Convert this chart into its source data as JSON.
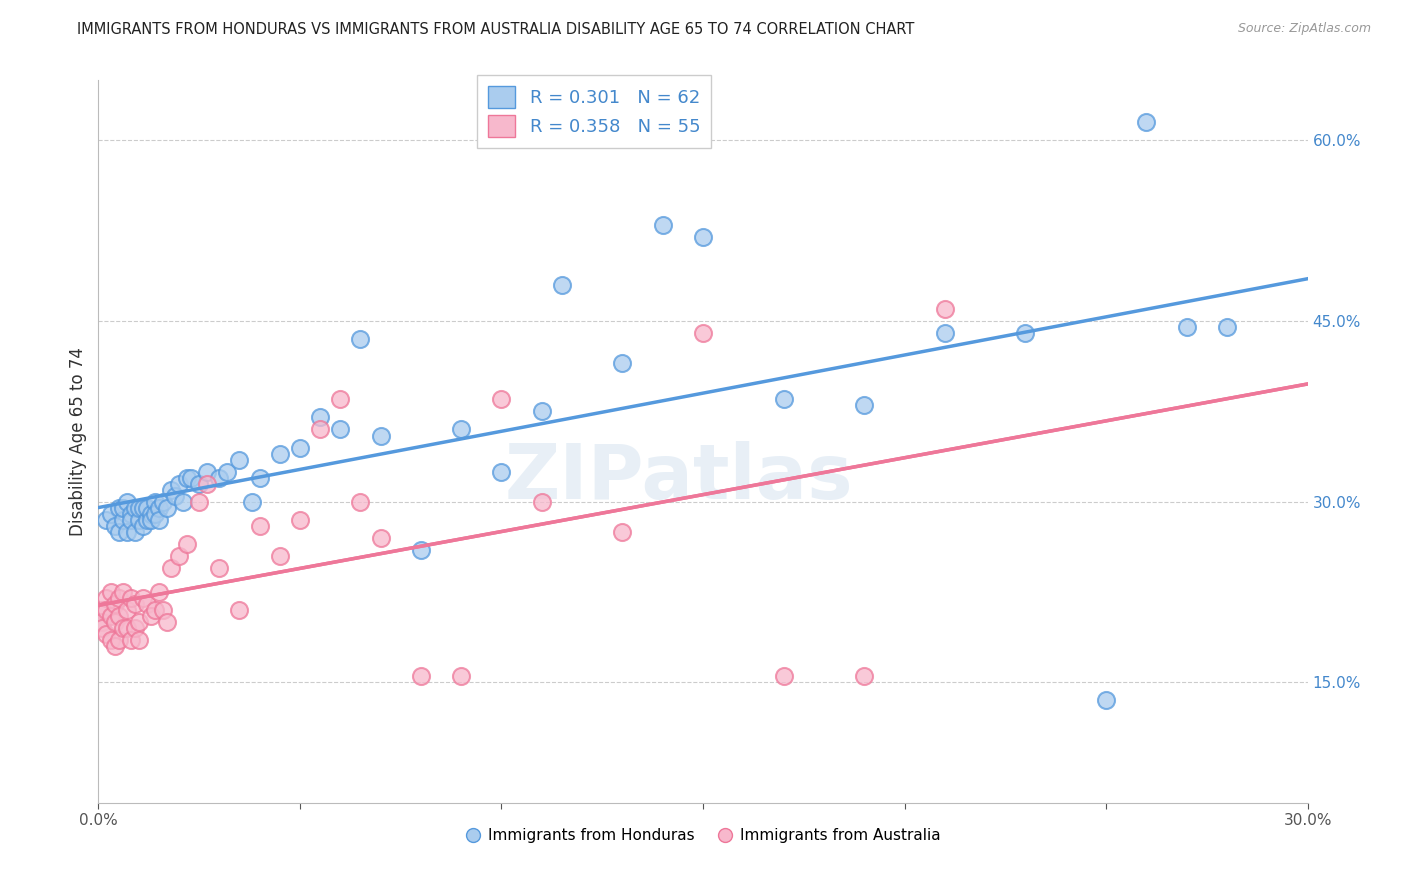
{
  "title": "IMMIGRANTS FROM HONDURAS VS IMMIGRANTS FROM AUSTRALIA DISABILITY AGE 65 TO 74 CORRELATION CHART",
  "source_text": "Source: ZipAtlas.com",
  "ylabel": "Disability Age 65 to 74",
  "xlim": [
    0.0,
    0.3
  ],
  "ylim": [
    0.05,
    0.65
  ],
  "yticks_right": [
    0.15,
    0.3,
    0.45,
    0.6
  ],
  "ytick_right_labels": [
    "15.0%",
    "30.0%",
    "45.0%",
    "60.0%"
  ],
  "R_honduras": 0.301,
  "N_honduras": 62,
  "R_australia": 0.358,
  "N_australia": 55,
  "color_honduras": "#aaccee",
  "color_australia": "#f7b8cc",
  "color_honduras_line": "#5599dd",
  "color_australia_line": "#ee7799",
  "color_r_value": "#4488cc",
  "watermark": "ZIPatlas",
  "honduras_x": [
    0.002,
    0.003,
    0.004,
    0.005,
    0.005,
    0.006,
    0.006,
    0.007,
    0.007,
    0.008,
    0.008,
    0.009,
    0.009,
    0.01,
    0.01,
    0.011,
    0.011,
    0.012,
    0.012,
    0.013,
    0.013,
    0.014,
    0.014,
    0.015,
    0.015,
    0.016,
    0.017,
    0.018,
    0.019,
    0.02,
    0.021,
    0.022,
    0.023,
    0.025,
    0.027,
    0.03,
    0.032,
    0.035,
    0.038,
    0.04,
    0.045,
    0.05,
    0.055,
    0.06,
    0.065,
    0.07,
    0.08,
    0.09,
    0.1,
    0.11,
    0.13,
    0.15,
    0.17,
    0.19,
    0.21,
    0.23,
    0.115,
    0.14,
    0.25,
    0.26,
    0.27,
    0.28
  ],
  "honduras_y": [
    0.285,
    0.29,
    0.28,
    0.295,
    0.275,
    0.285,
    0.295,
    0.3,
    0.275,
    0.29,
    0.285,
    0.295,
    0.275,
    0.285,
    0.295,
    0.28,
    0.295,
    0.285,
    0.295,
    0.29,
    0.285,
    0.3,
    0.29,
    0.295,
    0.285,
    0.3,
    0.295,
    0.31,
    0.305,
    0.315,
    0.3,
    0.32,
    0.32,
    0.315,
    0.325,
    0.32,
    0.325,
    0.335,
    0.3,
    0.32,
    0.34,
    0.345,
    0.37,
    0.36,
    0.435,
    0.355,
    0.26,
    0.36,
    0.325,
    0.375,
    0.415,
    0.52,
    0.385,
    0.38,
    0.44,
    0.44,
    0.48,
    0.53,
    0.135,
    0.615,
    0.445,
    0.445
  ],
  "australia_x": [
    0.001,
    0.001,
    0.001,
    0.002,
    0.002,
    0.002,
    0.003,
    0.003,
    0.003,
    0.004,
    0.004,
    0.004,
    0.005,
    0.005,
    0.005,
    0.006,
    0.006,
    0.007,
    0.007,
    0.008,
    0.008,
    0.009,
    0.009,
    0.01,
    0.01,
    0.011,
    0.012,
    0.013,
    0.014,
    0.015,
    0.016,
    0.017,
    0.018,
    0.02,
    0.022,
    0.025,
    0.027,
    0.03,
    0.035,
    0.04,
    0.045,
    0.05,
    0.055,
    0.06,
    0.065,
    0.07,
    0.08,
    0.09,
    0.1,
    0.11,
    0.13,
    0.15,
    0.17,
    0.19,
    0.21
  ],
  "australia_y": [
    0.21,
    0.2,
    0.195,
    0.22,
    0.21,
    0.19,
    0.225,
    0.205,
    0.185,
    0.215,
    0.2,
    0.18,
    0.22,
    0.205,
    0.185,
    0.225,
    0.195,
    0.21,
    0.195,
    0.22,
    0.185,
    0.215,
    0.195,
    0.2,
    0.185,
    0.22,
    0.215,
    0.205,
    0.21,
    0.225,
    0.21,
    0.2,
    0.245,
    0.255,
    0.265,
    0.3,
    0.315,
    0.245,
    0.21,
    0.28,
    0.255,
    0.285,
    0.36,
    0.385,
    0.3,
    0.27,
    0.155,
    0.155,
    0.385,
    0.3,
    0.275,
    0.44,
    0.155,
    0.155,
    0.46
  ]
}
